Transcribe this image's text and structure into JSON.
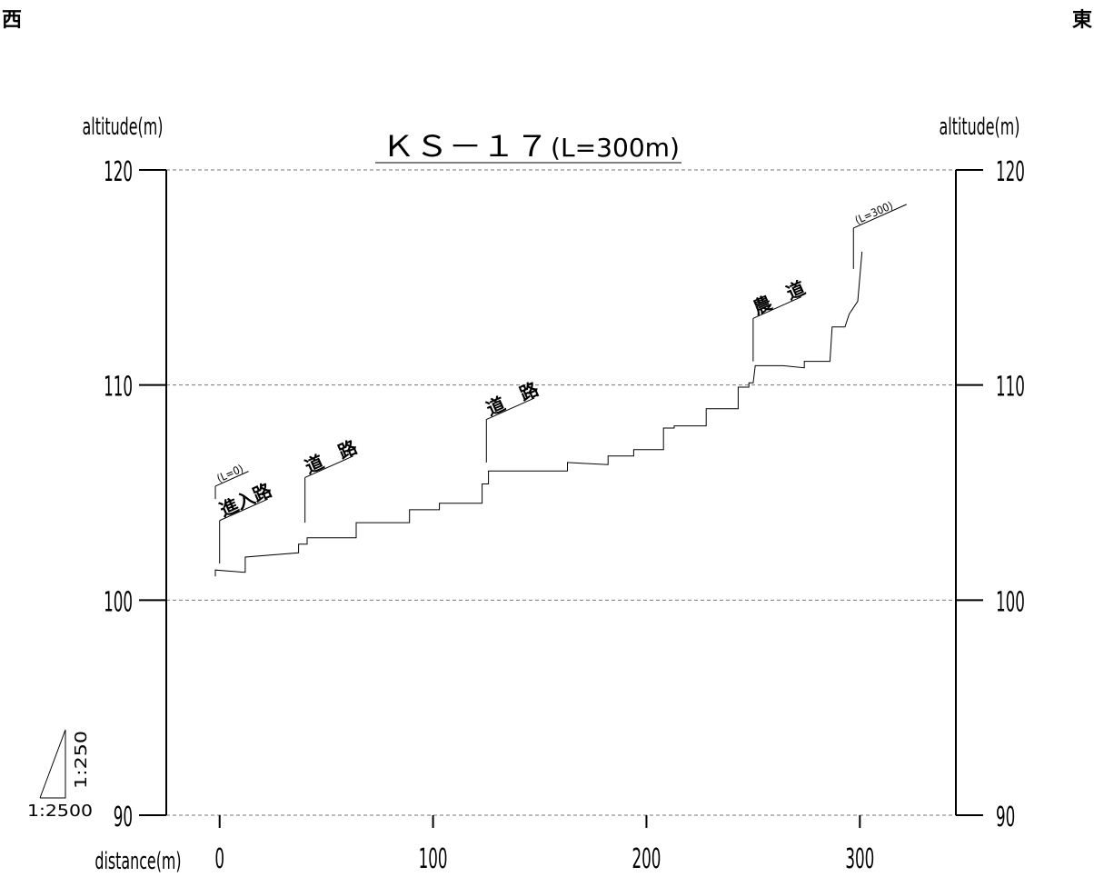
{
  "corners": {
    "west": "西",
    "east": "東"
  },
  "scale": {
    "vertical": "1:250",
    "horizontal": "1:2500"
  },
  "chart_data": {
    "type": "line",
    "title": "ＫＳ－１７",
    "title_suffix": "(L=300m)",
    "xlabel": "distance(m)",
    "ylabel_left": "altitude(m)",
    "ylabel_right": "altitude(m)",
    "xlim": [
      -25,
      345
    ],
    "ylim": [
      90,
      120
    ],
    "xticks": [
      0,
      100,
      200,
      300
    ],
    "yticks": [
      90,
      100,
      110,
      120
    ],
    "grid_y": true,
    "series": [
      {
        "points": [
          [
            -2,
            101.1
          ],
          [
            -2,
            101.4
          ],
          [
            11,
            101.3
          ],
          [
            12,
            101.3
          ],
          [
            12,
            102.0
          ],
          [
            37,
            102.2
          ],
          [
            37,
            102.6
          ],
          [
            41,
            102.6
          ],
          [
            41,
            102.9
          ],
          [
            64,
            102.9
          ],
          [
            64,
            103.6
          ],
          [
            89,
            103.6
          ],
          [
            89,
            104.2
          ],
          [
            103,
            104.2
          ],
          [
            103,
            104.5
          ],
          [
            123,
            104.5
          ],
          [
            123,
            105.4
          ],
          [
            126,
            105.4
          ],
          [
            126,
            106.0
          ],
          [
            163,
            106.0
          ],
          [
            163,
            106.4
          ],
          [
            182,
            106.3
          ],
          [
            182,
            106.7
          ],
          [
            194,
            106.7
          ],
          [
            194,
            107.0
          ],
          [
            208,
            107.0
          ],
          [
            208,
            108.0
          ],
          [
            213,
            108.0
          ],
          [
            213,
            108.1
          ],
          [
            228,
            108.1
          ],
          [
            228,
            108.9
          ],
          [
            243,
            108.9
          ],
          [
            243,
            109.9
          ],
          [
            248,
            109.9
          ],
          [
            248,
            110.1
          ],
          [
            250,
            110.1
          ],
          [
            251,
            110.9
          ],
          [
            264,
            110.9
          ],
          [
            274,
            110.8
          ],
          [
            274,
            111.1
          ],
          [
            286,
            111.1
          ],
          [
            287,
            112.7
          ],
          [
            293,
            112.7
          ],
          [
            295,
            113.3
          ],
          [
            299,
            113.9
          ],
          [
            301,
            116.2
          ]
        ]
      }
    ],
    "annotations": [
      {
        "label": "(L=0)",
        "x": -2,
        "y_base": 104.7,
        "y_top": 105.3
      },
      {
        "label": "進入路",
        "x": 0,
        "y_base": 101.7,
        "y_top": 103.7
      },
      {
        "label": "道　路",
        "x": 40,
        "y_base": 103.6,
        "y_top": 105.7
      },
      {
        "label": "道　路",
        "x": 125,
        "y_base": 106.4,
        "y_top": 108.4
      },
      {
        "label": "農　道",
        "x": 250,
        "y_base": 111.1,
        "y_top": 113.1
      },
      {
        "label": "(L=300)",
        "x": 297,
        "y_base": 115.4,
        "y_top": 117.3
      }
    ]
  }
}
